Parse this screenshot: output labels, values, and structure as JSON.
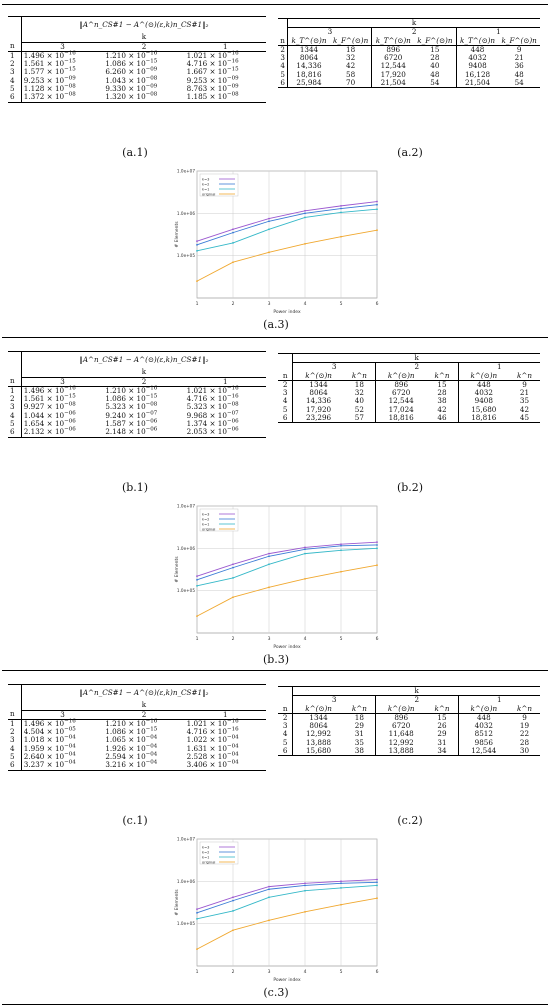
{
  "sections": [
    {
      "id": "a",
      "caption_left": "(a.1)",
      "caption_right": "(a.2)",
      "caption_chart": "(a.3)",
      "norm_header": "‖A^n_CS#1 − A^(⊙)(ε,k)n_CS#1‖₂",
      "k_label": "k",
      "n_label": "n",
      "k_cols": [
        "3",
        "2",
        "1"
      ],
      "err_rows": [
        [
          "1",
          "1.496",
          "−16",
          "1.210",
          "−16",
          "1.021",
          "−16"
        ],
        [
          "2",
          "1.561",
          "−15",
          "1.086",
          "−15",
          "4.716",
          "−16"
        ],
        [
          "3",
          "1.577",
          "−15",
          "6.260",
          "−09",
          "1.667",
          "−15"
        ],
        [
          "4",
          "9.253",
          "−09",
          "1.043",
          "−08",
          "9.253",
          "−09"
        ],
        [
          "5",
          "1.128",
          "−08",
          "9.330",
          "−09",
          "8.763",
          "−09"
        ],
        [
          "6",
          "1.372",
          "−08",
          "1.320",
          "−08",
          "1.185",
          "−08"
        ]
      ],
      "cnt_subhdr": [
        "k_T^(⊙)n",
        "k_F^(⊙)n",
        "k_T^(⊙)n",
        "k_F^(⊙)n",
        "k_T^(⊙)n",
        "k_F^(⊙)n"
      ],
      "cnt_rows": [
        [
          "2",
          "1344",
          "18",
          "896",
          "15",
          "448",
          "9"
        ],
        [
          "3",
          "8064",
          "32",
          "6720",
          "28",
          "4032",
          "21"
        ],
        [
          "4",
          "14,336",
          "42",
          "12,544",
          "40",
          "9408",
          "36"
        ],
        [
          "5",
          "18,816",
          "58",
          "17,920",
          "48",
          "16,128",
          "48"
        ],
        [
          "6",
          "25,984",
          "70",
          "21,504",
          "54",
          "21,504",
          "54"
        ]
      ]
    },
    {
      "id": "b",
      "caption_left": "(b.1)",
      "caption_right": "(b.2)",
      "caption_chart": "(b.3)",
      "norm_header": "‖A^n_CS#1 − A^(⊙)(ε,k)n_CS#1‖₂",
      "k_label": "k",
      "n_label": "n",
      "k_cols": [
        "3",
        "2",
        "1"
      ],
      "err_rows": [
        [
          "1",
          "1.496",
          "−16",
          "1.210",
          "−16",
          "1.021",
          "−16"
        ],
        [
          "2",
          "1.561",
          "−15",
          "1.086",
          "−15",
          "4.716",
          "−16"
        ],
        [
          "3",
          "9.927",
          "−08",
          "5.323",
          "−08",
          "5.323",
          "−08"
        ],
        [
          "4",
          "1.044",
          "−06",
          "9.240",
          "−07",
          "9.968",
          "−07"
        ],
        [
          "5",
          "1.654",
          "−06",
          "1.587",
          "−06",
          "1.374",
          "−06"
        ],
        [
          "6",
          "2.132",
          "−06",
          "2.148",
          "−06",
          "2.053",
          "−06"
        ]
      ],
      "cnt_subhdr": [
        "k^(⊙)n",
        "k^n",
        "k^(⊙)n",
        "k^n",
        "k^(⊙)n",
        "k^n"
      ],
      "cnt_rows": [
        [
          "2",
          "1344",
          "18",
          "896",
          "15",
          "448",
          "9"
        ],
        [
          "3",
          "8064",
          "32",
          "6720",
          "28",
          "4032",
          "21"
        ],
        [
          "4",
          "14,336",
          "40",
          "12,544",
          "38",
          "9408",
          "35"
        ],
        [
          "5",
          "17,920",
          "52",
          "17,024",
          "42",
          "15,680",
          "42"
        ],
        [
          "6",
          "23,296",
          "57",
          "18,816",
          "46",
          "18,816",
          "45"
        ]
      ]
    },
    {
      "id": "c",
      "caption_left": "(c.1)",
      "caption_right": "(c.2)",
      "caption_chart": "(c.3)",
      "norm_header": "‖A^n_CS#1 − A^(⊙)(ε,k)n_CS#1‖₂",
      "k_label": "k",
      "n_label": "n",
      "k_cols": [
        "3",
        "2",
        "1"
      ],
      "err_rows": [
        [
          "1",
          "1.496",
          "−16",
          "1.210",
          "−16",
          "1.021",
          "−16"
        ],
        [
          "2",
          "4.504",
          "−05",
          "1.086",
          "−15",
          "4.716",
          "−16"
        ],
        [
          "3",
          "1.018",
          "−04",
          "1.065",
          "−04",
          "1.022",
          "−04"
        ],
        [
          "4",
          "1.959",
          "−04",
          "1.926",
          "−04",
          "1.631",
          "−04"
        ],
        [
          "5",
          "2.640",
          "−04",
          "2.594",
          "−04",
          "2.528",
          "−04"
        ],
        [
          "6",
          "3.237",
          "−04",
          "3.216",
          "−04",
          "3.406",
          "−04"
        ]
      ],
      "cnt_subhdr": [
        "k^(⊙)n",
        "k^n",
        "k^(⊙)n",
        "k^n",
        "k^(⊙)n",
        "k^n"
      ],
      "cnt_rows": [
        [
          "2",
          "1344",
          "18",
          "896",
          "15",
          "448",
          "9"
        ],
        [
          "3",
          "8064",
          "29",
          "6720",
          "26",
          "4032",
          "19"
        ],
        [
          "4",
          "12,992",
          "31",
          "11,648",
          "29",
          "8512",
          "22"
        ],
        [
          "5",
          "13,888",
          "35",
          "12,992",
          "31",
          "9856",
          "28"
        ],
        [
          "6",
          "15,680",
          "38",
          "13,888",
          "34",
          "12,544",
          "30"
        ]
      ]
    }
  ],
  "chart_data": [
    {
      "type": "line",
      "xlabel": "Power index",
      "ylabel": "# Elements",
      "log_y": true,
      "ylim": [
        10000,
        10000000
      ],
      "y_ticks": [
        "1.0e+07",
        "1.0e+06",
        "1.0e+05"
      ],
      "x": [
        1,
        2,
        3,
        4,
        5,
        6
      ],
      "series": [
        {
          "name": "k=3",
          "color": "#9b59d0",
          "values": [
            220000,
            420000,
            750000,
            1150000,
            1500000,
            1900000
          ]
        },
        {
          "name": "k=2",
          "color": "#3a7bd5",
          "values": [
            180000,
            350000,
            650000,
            1000000,
            1300000,
            1600000
          ]
        },
        {
          "name": "k=1",
          "color": "#35b8c8",
          "values": [
            130000,
            200000,
            420000,
            800000,
            1050000,
            1250000
          ]
        },
        {
          "name": "original",
          "color": "#f0a830",
          "values": [
            25000,
            70000,
            120000,
            190000,
            280000,
            400000
          ]
        }
      ]
    },
    {
      "type": "line",
      "xlabel": "Power index",
      "ylabel": "# Elements",
      "log_y": true,
      "ylim": [
        10000,
        10000000
      ],
      "y_ticks": [
        "1.0e+07",
        "1.0e+06",
        "1.0e+05"
      ],
      "x": [
        1,
        2,
        3,
        4,
        5,
        6
      ],
      "series": [
        {
          "name": "k=3",
          "color": "#9b59d0",
          "values": [
            220000,
            420000,
            750000,
            1050000,
            1250000,
            1400000
          ]
        },
        {
          "name": "k=2",
          "color": "#3a7bd5",
          "values": [
            180000,
            350000,
            650000,
            950000,
            1150000,
            1200000
          ]
        },
        {
          "name": "k=1",
          "color": "#35b8c8",
          "values": [
            130000,
            200000,
            420000,
            750000,
            900000,
            1000000
          ]
        },
        {
          "name": "original",
          "color": "#f0a830",
          "values": [
            25000,
            70000,
            120000,
            190000,
            280000,
            400000
          ]
        }
      ]
    },
    {
      "type": "line",
      "xlabel": "Power index",
      "ylabel": "# Elements",
      "log_y": true,
      "ylim": [
        10000,
        10000000
      ],
      "y_ticks": [
        "1.0e+07",
        "1.0e+06",
        "1.0e+05"
      ],
      "x": [
        1,
        2,
        3,
        4,
        5,
        6
      ],
      "series": [
        {
          "name": "k=3",
          "color": "#9b59d0",
          "values": [
            220000,
            420000,
            750000,
            900000,
            1000000,
            1100000
          ]
        },
        {
          "name": "k=2",
          "color": "#3a7bd5",
          "values": [
            180000,
            350000,
            650000,
            800000,
            900000,
            950000
          ]
        },
        {
          "name": "k=1",
          "color": "#35b8c8",
          "values": [
            130000,
            200000,
            420000,
            600000,
            700000,
            800000
          ]
        },
        {
          "name": "original",
          "color": "#f0a830",
          "values": [
            25000,
            70000,
            120000,
            190000,
            280000,
            400000
          ]
        }
      ]
    }
  ]
}
